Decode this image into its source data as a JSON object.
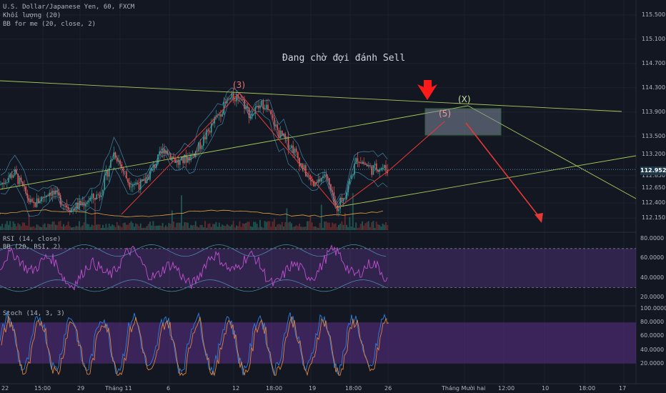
{
  "header": {
    "symbol_line": "U.S. Dollar/Japanese Yen, 60, FXCM",
    "volume_line": "Khối lượng (20)",
    "bb_line": "BB for me (20, close, 2)"
  },
  "annotation": {
    "main_text": "Đang chờ đợi đánh Sell",
    "wave_3": "(3)",
    "wave_5": "(5)",
    "wave_x": "(X)"
  },
  "colors": {
    "background": "#131722",
    "candle_up": "#26a69a",
    "candle_down": "#ef5350",
    "wave_line": "#e53935",
    "trend_line": "#a5c85a",
    "rsi_band": "#6a3d9a",
    "stoch_band": "#5b2f86",
    "target_box": "#7f8a9e",
    "target_box_border": "#43a047"
  },
  "price_axis": {
    "labels": [
      "115.500",
      "115.100",
      "114.700",
      "114.300",
      "113.900",
      "113.500",
      "113.200",
      "112.850",
      "112.650",
      "112.400",
      "112.150"
    ],
    "current_price": "112.952"
  },
  "rsi_panel": {
    "title": "RSI (14, close)",
    "subtitle": "BB (20, RSI, 2)",
    "labels": [
      "80.0000",
      "60.0000",
      "40.0000",
      "20.0000"
    ]
  },
  "stoch_panel": {
    "title": "Stoch (14, 3, 3)",
    "labels": [
      "100.0000",
      "80.0000",
      "60.0000",
      "40.0000",
      "20.0000"
    ]
  },
  "time_axis": {
    "labels": [
      "22",
      "15:00",
      "29",
      "Tháng 11",
      "6",
      "12",
      "18:00",
      "19",
      "18:00",
      "26",
      "Tháng Mười hai",
      "12:00",
      "10",
      "18:00",
      "17"
    ]
  },
  "chart_data": {
    "type": "candlestick",
    "title": "U.S. Dollar/Japanese Yen, 60, FXCM",
    "ylim": [
      112.0,
      115.7
    ],
    "waves": [
      {
        "label": "(3)",
        "price": 114.25
      },
      {
        "label": "(5)",
        "price": 113.75
      },
      {
        "label": "(X)",
        "price": 114.05
      }
    ],
    "current_price": 112.952,
    "rsi_ylim": [
      12,
      86
    ],
    "stoch_ylim": [
      0,
      100
    ]
  }
}
